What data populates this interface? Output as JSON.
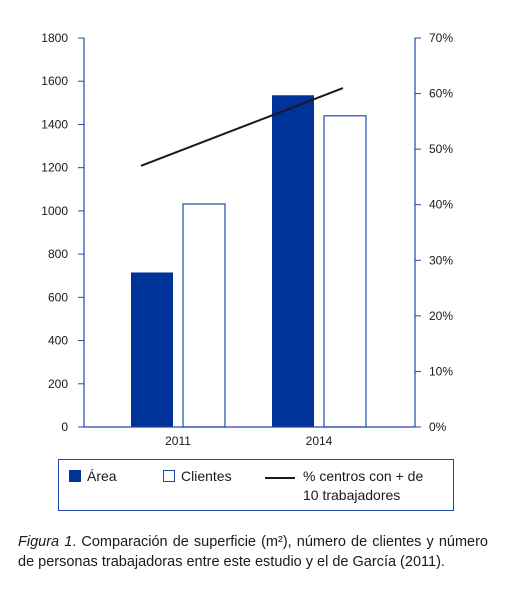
{
  "chart_data": {
    "type": "bar",
    "categories": [
      "2011",
      "2014"
    ],
    "series": [
      {
        "name": "Área",
        "values": [
          715,
          1535
        ],
        "axis": "left",
        "style": "filled",
        "color": "#003399"
      },
      {
        "name": "Clientes",
        "values": [
          1032,
          1440
        ],
        "axis": "left",
        "style": "outline",
        "color": "#1f4aa8"
      },
      {
        "name": "% centros con + de 10 trabajadores",
        "values": [
          47,
          61
        ],
        "axis": "right",
        "type": "line",
        "color": "#1a1a1a"
      }
    ],
    "ylim": [
      0,
      1800
    ],
    "yticks": [
      "0",
      "200",
      "400",
      "600",
      "800",
      "1000",
      "1200",
      "1400",
      "1600",
      "1800"
    ],
    "y2lim": [
      0,
      70
    ],
    "y2ticks": [
      "0%",
      "10%",
      "20%",
      "30%",
      "40%",
      "50%",
      "60%",
      "70%"
    ],
    "title": "",
    "xlabel": "",
    "ylabel": "",
    "y2label": "",
    "grid": false,
    "legend_position": "bottom",
    "axis_color": "#1f4aa8"
  },
  "legend": {
    "area": "Área",
    "clientes": "Clientes",
    "line_1": "% centros con + de",
    "line_2": "10 trabajadores"
  },
  "caption": {
    "label": "Figura 1",
    "text": ". Comparación de superficie (m²), número de clientes y número de personas trabajadoras entre este estudio y el de García (2011)."
  }
}
